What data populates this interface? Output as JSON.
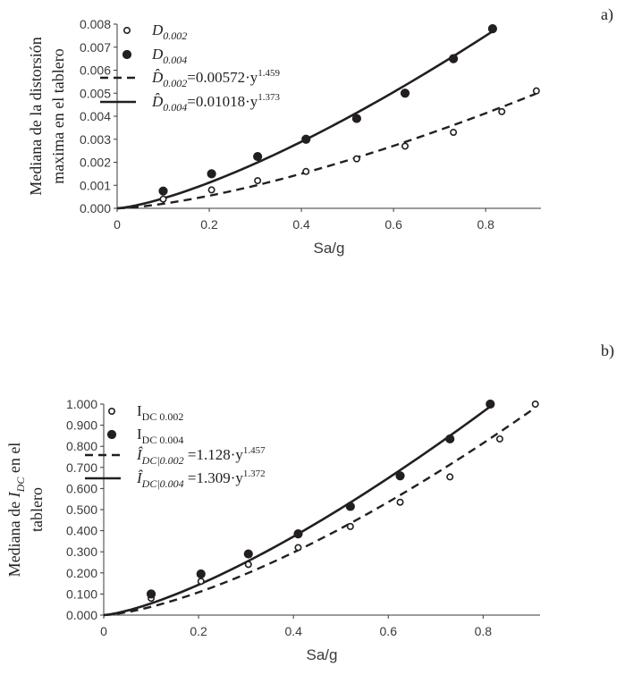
{
  "chart_data": [
    {
      "type": "scatter",
      "panel_label": "a)",
      "xlabel": "Sa/g",
      "ylabel_lines": [
        "Mediana de  la distorsión",
        "maxima en el tablero"
      ],
      "xlim": [
        0,
        0.92
      ],
      "ylim": [
        0,
        0.008
      ],
      "x_ticks": [
        0,
        0.2,
        0.4,
        0.6,
        0.8
      ],
      "x_tick_labels": [
        "0",
        "0.2",
        "0.4",
        "0.6",
        "0.8"
      ],
      "y_ticks": [
        0,
        0.001,
        0.002,
        0.003,
        0.004,
        0.005,
        0.006,
        0.007,
        0.008
      ],
      "y_tick_labels": [
        "0.000",
        "0.001",
        "0.002",
        "0.003",
        "0.004",
        "0.005",
        "0.006",
        "0.007",
        "0.008"
      ],
      "series": [
        {
          "name": "D_0.002",
          "kind": "points",
          "marker": "open-circle",
          "x": [
            0.1,
            0.205,
            0.305,
            0.41,
            0.52,
            0.625,
            0.73,
            0.835,
            0.91
          ],
          "y": [
            0.0004,
            0.0008,
            0.0012,
            0.0016,
            0.00215,
            0.0027,
            0.0033,
            0.0042,
            0.0051
          ]
        },
        {
          "name": "D_0.004",
          "kind": "points",
          "marker": "filled-circle",
          "x": [
            0.1,
            0.205,
            0.305,
            0.41,
            0.52,
            0.625,
            0.73,
            0.815
          ],
          "y": [
            0.00075,
            0.0015,
            0.00225,
            0.003,
            0.0039,
            0.005,
            0.0065,
            0.0078
          ]
        },
        {
          "name": "D̂_0.002 fit",
          "kind": "fit",
          "style": "dashed",
          "coef": 0.00572,
          "exp": 1.459,
          "x_range": [
            0,
            0.91
          ]
        },
        {
          "name": "D̂_0.004 fit",
          "kind": "fit",
          "style": "solid",
          "coef": 0.01018,
          "exp": 1.373,
          "x_range": [
            0,
            0.815
          ]
        }
      ],
      "legend": [
        {
          "marker": "open-circle",
          "prefix": "",
          "base": "D",
          "base_italic": true,
          "sub": "0.002",
          "sub_italic": true,
          "eq": "",
          "sup": ""
        },
        {
          "marker": "filled-circle",
          "prefix": "",
          "base": "D",
          "base_italic": true,
          "sub": "0.004",
          "sub_italic": true,
          "eq": "",
          "sup": ""
        },
        {
          "marker": "dashed-line",
          "prefix": "",
          "base": "D̂",
          "base_italic": true,
          "sub": "0.002",
          "sub_italic": true,
          "eq": "=0.00572·y",
          "sup": "1.459"
        },
        {
          "marker": "solid-line",
          "prefix": "",
          "base": "D̂",
          "base_italic": true,
          "sub": "0.004",
          "sub_italic": true,
          "eq": "=0.01018·y",
          "sup": "1.373"
        }
      ]
    },
    {
      "type": "scatter",
      "panel_label": "b)",
      "xlabel": "Sa/g",
      "ylabel_line1": {
        "prefix": "Mediana de ",
        "base": "I",
        "sub": "DC",
        "suffix": " en el"
      },
      "ylabel_line2": "tablero",
      "xlim": [
        0,
        0.92
      ],
      "ylim": [
        0,
        1.0
      ],
      "x_ticks": [
        0,
        0.2,
        0.4,
        0.6,
        0.8
      ],
      "x_tick_labels": [
        "0",
        "0.2",
        "0.4",
        "0.6",
        "0.8"
      ],
      "y_ticks": [
        0,
        0.1,
        0.2,
        0.3,
        0.4,
        0.5,
        0.6,
        0.7,
        0.8,
        0.9,
        1.0
      ],
      "y_tick_labels": [
        "0.000",
        "0.100",
        "0.200",
        "0.300",
        "0.400",
        "0.500",
        "0.600",
        "0.700",
        "0.800",
        "0.900",
        "1.000"
      ],
      "series": [
        {
          "name": "I_DC 0.002",
          "kind": "points",
          "marker": "open-circle",
          "x": [
            0.1,
            0.205,
            0.305,
            0.41,
            0.52,
            0.625,
            0.73,
            0.835,
            0.91
          ],
          "y": [
            0.08,
            0.16,
            0.24,
            0.32,
            0.42,
            0.535,
            0.655,
            0.835,
            1.0
          ]
        },
        {
          "name": "I_DC 0.004",
          "kind": "points",
          "marker": "filled-circle",
          "x": [
            0.1,
            0.205,
            0.305,
            0.41,
            0.52,
            0.625,
            0.73,
            0.815
          ],
          "y": [
            0.1,
            0.195,
            0.29,
            0.385,
            0.515,
            0.66,
            0.835,
            1.0
          ]
        },
        {
          "name": "Î_DC|0.002 fit",
          "kind": "fit",
          "style": "dashed",
          "coef": 1.128,
          "exp": 1.457,
          "x_range": [
            0,
            0.91
          ]
        },
        {
          "name": "Î_DC|0.004 fit",
          "kind": "fit",
          "style": "solid",
          "coef": 1.309,
          "exp": 1.372,
          "x_range": [
            0,
            0.815
          ]
        }
      ],
      "legend": [
        {
          "marker": "open-circle",
          "prefix": "",
          "base": "I",
          "base_italic": false,
          "sub": "DC 0.002",
          "sub_italic": false,
          "eq": "",
          "sup": ""
        },
        {
          "marker": "filled-circle",
          "prefix": "",
          "base": "I",
          "base_italic": false,
          "sub": "DC 0.004",
          "sub_italic": false,
          "eq": "",
          "sup": ""
        },
        {
          "marker": "dashed-line",
          "prefix": "",
          "base": "Î",
          "base_italic": true,
          "sub": "DC|0.002",
          "sub_italic": true,
          "eq": " =1.128·y",
          "sup": "1.457"
        },
        {
          "marker": "solid-line",
          "prefix": "",
          "base": "Î",
          "base_italic": true,
          "sub": "DC|0.004",
          "sub_italic": true,
          "eq": " =1.309·y",
          "sup": "1.372"
        }
      ]
    }
  ],
  "colors": {
    "ink": "#231f20",
    "axis": "#3a3a3a",
    "open_marker_fill": "#ffffff"
  }
}
